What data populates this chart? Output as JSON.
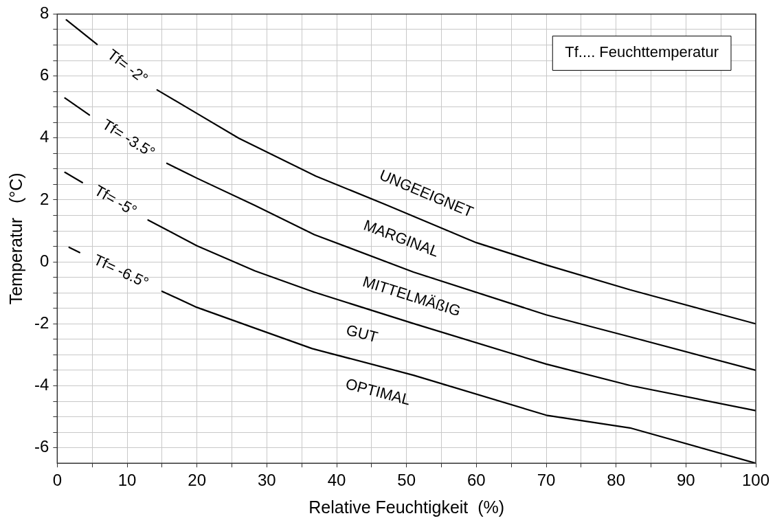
{
  "chart_data": {
    "type": "line",
    "xlabel": "Relative Feuchtigkeit  (%)",
    "ylabel": "Temperatur   (°C)",
    "xlim": [
      0,
      100
    ],
    "xticks": [
      0,
      {
        "value": 5,
        "label": null
      },
      10,
      {
        "value": 15,
        "label": null
      },
      20,
      {
        "value": 25,
        "label": null
      },
      30,
      {
        "value": 35,
        "label": null
      },
      40,
      {
        "value": 45,
        "label": null
      },
      50,
      {
        "value": 55,
        "label": null
      },
      60,
      {
        "value": 65,
        "label": null
      },
      70,
      {
        "value": 75,
        "label": null
      },
      80,
      {
        "value": 85,
        "label": null
      },
      90,
      {
        "value": 95,
        "label": null
      },
      100
    ],
    "ylim": [
      -6.5,
      8
    ],
    "yticks": [
      -6,
      {
        "value": -5.5,
        "label": null
      },
      -4,
      {
        "value": -4.5,
        "label": null
      },
      {
        "value": -5,
        "label": null
      },
      {
        "value": -3.5,
        "label": null
      },
      {
        "value": -3,
        "label": null
      },
      -2,
      {
        "value": -2.5,
        "label": null
      },
      {
        "value": -1.5,
        "label": null
      },
      {
        "value": -1,
        "label": null
      },
      {
        "value": -0.5,
        "label": null
      },
      0,
      {
        "value": 0.5,
        "label": null
      },
      {
        "value": 1,
        "label": null
      },
      {
        "value": 1.5,
        "label": null
      },
      2,
      {
        "value": 2.5,
        "label": null
      },
      {
        "value": 3,
        "label": null
      },
      {
        "value": 3.5,
        "label": null
      },
      4,
      {
        "value": 4.5,
        "label": null
      },
      {
        "value": 5,
        "label": null
      },
      {
        "value": 5.5,
        "label": null
      },
      6,
      {
        "value": 6.5,
        "label": null
      },
      {
        "value": 7,
        "label": null
      },
      {
        "value": 7.5,
        "label": null
      },
      8
    ],
    "grid": true,
    "legend": false,
    "marker": "none",
    "line_style": "solid",
    "series": [
      {
        "name": "Tf= -2°",
        "color": "#000000",
        "x": [
          1.3,
          5.7,
          10,
          14.3,
          20,
          26,
          37,
          47,
          60,
          70,
          82,
          100
        ],
        "values": [
          7.81,
          7.02,
          null,
          5.55,
          4.79,
          3.99,
          2.77,
          1.85,
          0.62,
          -0.1,
          -0.9,
          -2.0
        ]
      },
      {
        "name": "Tf= -3.5°",
        "color": "#000000",
        "x": [
          1.1,
          4.6,
          10,
          15.7,
          20,
          28.3,
          36.8,
          51,
          70,
          82,
          100
        ],
        "values": [
          5.29,
          4.74,
          null,
          3.18,
          2.7,
          1.82,
          0.88,
          -0.33,
          -1.71,
          -2.42,
          -3.5
        ]
      },
      {
        "name": "Tf= -5°",
        "color": "#000000",
        "x": [
          1.1,
          3.6,
          8,
          13,
          20,
          28.3,
          36.8,
          51,
          70,
          82,
          100
        ],
        "values": [
          2.89,
          2.56,
          null,
          1.35,
          0.52,
          -0.29,
          -0.98,
          -1.99,
          -3.3,
          -3.99,
          -4.8
        ]
      },
      {
        "name": "Tf= -6.5°",
        "color": "#000000",
        "x": [
          1.7,
          3.2,
          9,
          15,
          20,
          28.3,
          36.5,
          51,
          70,
          82,
          100
        ],
        "values": [
          0.47,
          0.3,
          null,
          -0.95,
          -1.47,
          -2.14,
          -2.8,
          -3.66,
          -4.95,
          -5.36,
          -6.5
        ]
      }
    ],
    "annotations": [
      "UNGEEIGNET",
      "MARGINAL",
      "MITTELMÄßIG",
      "GUT",
      "OPTIMAL",
      "Tf.... Feuchttemperatur"
    ]
  }
}
